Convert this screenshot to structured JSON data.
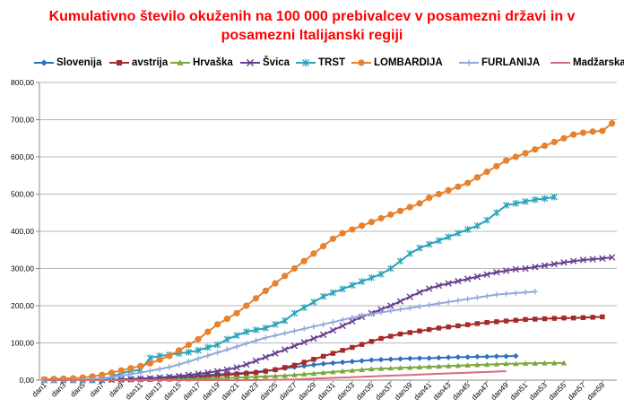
{
  "chart_data": {
    "type": "line",
    "title": "Kumulativno število okuženih na 100 000 prebivalcev v posamezni državi in v posamezni Italijanski regiji",
    "title_lines": [
      "Kumulativno število okuženih na 100 000 prebivalcev v posamezni državi in v",
      "posamezni Italijanski regiji"
    ],
    "xlabel": "",
    "ylabel": "",
    "ylim": [
      0,
      800
    ],
    "yticks": [
      "0,00",
      "100,00",
      "200,00",
      "300,00",
      "400,00",
      "500,00",
      "600,00",
      "700,00",
      "800,00"
    ],
    "x_tick_labels": [
      "dan1",
      "dan3",
      "dan5",
      "dan7",
      "dan9",
      "dan11",
      "dan13",
      "dan15",
      "dan17",
      "dan19",
      "dan21",
      "dan23",
      "dan25",
      "dan27",
      "dan29",
      "dan31",
      "dan33",
      "dan35",
      "dan37",
      "dan39",
      "dan41",
      "dan43",
      "dan45",
      "dan47",
      "dan49",
      "dan51",
      "dan53",
      "dan55",
      "dan57",
      "dan59"
    ],
    "days": 60,
    "grid": true,
    "legend_position": "top",
    "series": [
      {
        "name": "Slovenija",
        "color": "#2e6fbf",
        "marker": "diamond",
        "values": [
          0,
          0,
          0,
          0,
          0,
          0.5,
          1,
          1.5,
          2,
          3,
          4,
          5,
          6,
          8,
          9,
          10,
          12,
          14,
          15,
          17,
          18,
          20,
          22,
          25,
          28,
          32,
          35,
          38,
          41,
          44,
          46,
          48,
          50,
          52,
          54,
          55,
          56,
          57,
          58,
          59,
          59,
          60,
          61,
          62,
          62,
          63,
          63,
          64,
          64,
          65
        ]
      },
      {
        "name": "avstrija",
        "color": "#a52a2a",
        "marker": "square",
        "values": [
          0,
          0,
          0,
          0,
          0,
          0,
          0,
          0.5,
          1,
          1.5,
          2,
          3,
          4,
          5,
          6,
          7,
          8,
          10,
          12,
          14,
          16,
          18,
          20,
          24,
          28,
          34,
          40,
          48,
          56,
          64,
          72,
          80,
          88,
          96,
          104,
          112,
          118,
          124,
          128,
          132,
          136,
          140,
          143,
          146,
          149,
          152,
          155,
          157,
          159,
          161,
          163,
          164,
          165,
          166,
          167,
          167,
          168,
          169,
          170
        ]
      },
      {
        "name": "Hrvaška",
        "color": "#7aa83e",
        "marker": "triangle",
        "values": [
          0,
          0,
          0,
          0,
          0,
          0,
          0,
          0,
          0,
          0.5,
          1,
          1,
          2,
          2,
          3,
          3,
          4,
          4,
          5,
          6,
          7,
          8,
          9,
          10,
          11,
          12,
          14,
          16,
          18,
          20,
          22,
          24,
          26,
          28,
          30,
          31,
          32,
          33,
          34,
          35,
          36,
          37,
          38,
          39,
          40,
          41,
          42,
          43,
          44,
          44,
          45,
          45,
          46,
          46,
          46
        ]
      },
      {
        "name": "Švica",
        "color": "#6a3d91",
        "marker": "x",
        "values": [
          0,
          0,
          0,
          0,
          0,
          0,
          0.5,
          1,
          2,
          3,
          4,
          5,
          7,
          9,
          11,
          14,
          17,
          20,
          24,
          28,
          34,
          42,
          52,
          62,
          72,
          82,
          92,
          102,
          112,
          122,
          134,
          146,
          158,
          170,
          180,
          190,
          200,
          212,
          224,
          236,
          246,
          254,
          260,
          266,
          272,
          278,
          284,
          290,
          294,
          298,
          300,
          304,
          308,
          312,
          316,
          320,
          323,
          325,
          327,
          330
        ]
      },
      {
        "name": "TRST",
        "color": "#2aa3b8",
        "marker": "star",
        "values": [
          0,
          0,
          0,
          0,
          0,
          0,
          0,
          10,
          18,
          25,
          27,
          60,
          65,
          68,
          72,
          75,
          80,
          88,
          95,
          110,
          120,
          130,
          135,
          140,
          150,
          160,
          180,
          195,
          210,
          225,
          235,
          245,
          255,
          265,
          275,
          285,
          300,
          320,
          340,
          355,
          365,
          375,
          385,
          395,
          405,
          415,
          430,
          450,
          470,
          475,
          480,
          485,
          488,
          492
        ]
      },
      {
        "name": "LOMBARDIJA",
        "color": "#e6812e",
        "marker": "circle",
        "values": [
          2,
          3,
          4,
          5,
          7,
          10,
          14,
          20,
          26,
          32,
          38,
          45,
          55,
          65,
          80,
          95,
          110,
          130,
          150,
          165,
          180,
          200,
          220,
          240,
          260,
          280,
          300,
          320,
          340,
          360,
          380,
          395,
          405,
          415,
          425,
          435,
          445,
          455,
          465,
          475,
          490,
          500,
          510,
          520,
          530,
          545,
          560,
          575,
          590,
          600,
          610,
          620,
          630,
          640,
          650,
          660,
          665,
          668,
          670,
          690
        ]
      },
      {
        "name": "FURLANIJA",
        "color": "#8faad9",
        "marker": "plus",
        "values": [
          0,
          0,
          0,
          0,
          1,
          3,
          5,
          8,
          12,
          16,
          20,
          25,
          30,
          35,
          42,
          50,
          58,
          66,
          74,
          82,
          90,
          98,
          106,
          114,
          120,
          126,
          132,
          138,
          144,
          150,
          156,
          162,
          168,
          174,
          178,
          182,
          186,
          190,
          194,
          198,
          202,
          206,
          210,
          214,
          218,
          222,
          226,
          230,
          232,
          234,
          236,
          238
        ]
      },
      {
        "name": "Madžarska",
        "color": "#d96b78",
        "marker": "none",
        "values": [
          0,
          0,
          0,
          0,
          0,
          0,
          0,
          0,
          0,
          0,
          0,
          0,
          0,
          0,
          0,
          0,
          0,
          0,
          0,
          0,
          0,
          0,
          0,
          0.5,
          1,
          1.5,
          2,
          3,
          4,
          5,
          6,
          7,
          8,
          9,
          10,
          11,
          12,
          13,
          14,
          15,
          16,
          17,
          18,
          19,
          20,
          21,
          22,
          23,
          24
        ]
      }
    ]
  }
}
